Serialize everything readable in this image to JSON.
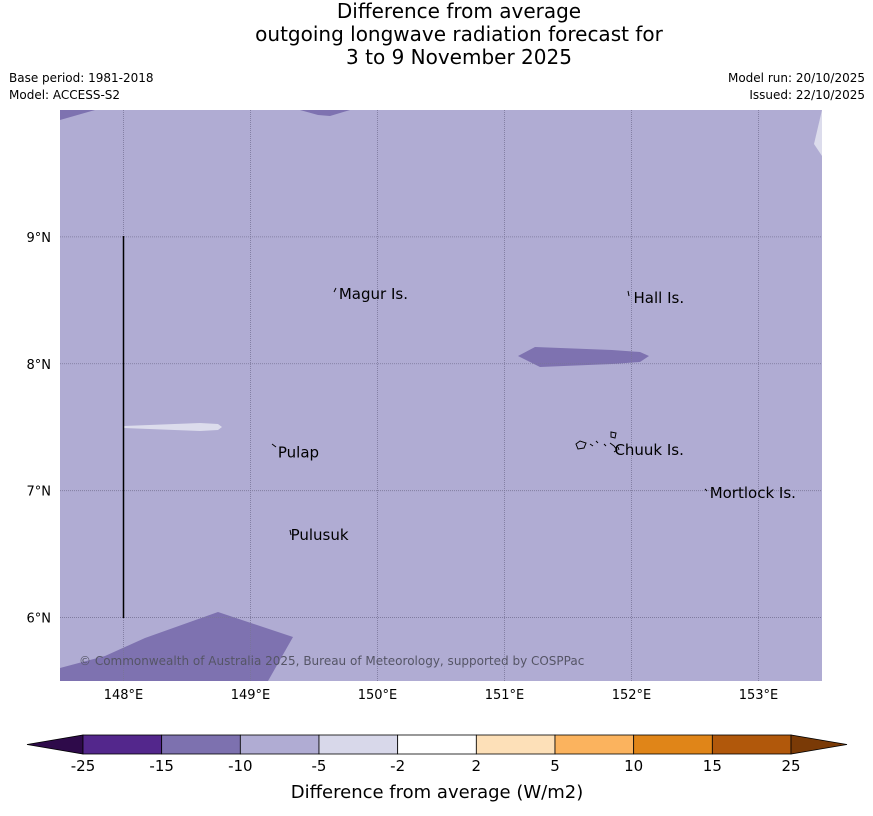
{
  "title": {
    "line1": "Difference from average",
    "line2": "outgoing longwave radiation forecast for",
    "line3": "3 to 9 November 2025"
  },
  "meta_left": {
    "base_period": "Base period: 1981-2018",
    "model": "Model: ACCESS-S2"
  },
  "meta_right": {
    "model_run": "Model run: 20/10/2025",
    "issued": "Issued: 22/10/2025"
  },
  "map": {
    "extent": {
      "lon_min": 147.5,
      "lon_max": 153.5,
      "lat_min": 5.5,
      "lat_max": 10.0
    },
    "lat_ticks": [
      {
        "value": 9,
        "label": "9°N"
      },
      {
        "value": 8,
        "label": "8°N"
      },
      {
        "value": 7,
        "label": "7°N"
      },
      {
        "value": 6,
        "label": "6°N"
      }
    ],
    "lon_ticks": [
      {
        "value": 148,
        "label": "148°E"
      },
      {
        "value": 149,
        "label": "149°E"
      },
      {
        "value": 150,
        "label": "150°E"
      },
      {
        "value": 151,
        "label": "151°E"
      },
      {
        "value": 152,
        "label": "152°E"
      },
      {
        "value": 153,
        "label": "153°E"
      }
    ],
    "places": [
      {
        "name": "Magur Is.",
        "lon": 149.68,
        "lat": 8.55
      },
      {
        "name": "Hall Is.",
        "lon": 152.0,
        "lat": 8.52
      },
      {
        "name": "Pulap",
        "lon": 149.2,
        "lat": 7.3
      },
      {
        "name": "Chuuk Is.",
        "lon": 151.85,
        "lat": 7.32
      },
      {
        "name": "Mortlock Is.",
        "lon": 152.6,
        "lat": 6.98
      },
      {
        "name": "Pulusuk",
        "lon": 149.3,
        "lat": 6.65
      }
    ],
    "credit": "© Commonwealth of Australia 2025, Bureau of Meteorology, supported by COSPPac",
    "colors": {
      "background": "#b0acd3",
      "dark_patch": "#7e72b0",
      "light_patch": "#dcdcec"
    }
  },
  "colorbar": {
    "title": "Difference from average (W/m2)",
    "labels": [
      "-25",
      "-15",
      "-10",
      "-5",
      "-2",
      "2",
      "5",
      "10",
      "15",
      "25"
    ],
    "bins": [
      {
        "color": "#53278c"
      },
      {
        "color": "#7d71af"
      },
      {
        "color": "#b0acd3"
      },
      {
        "color": "#d8d8ea"
      },
      {
        "color": "#ffffff"
      },
      {
        "color": "#fde0b8"
      },
      {
        "color": "#fbb35e"
      },
      {
        "color": "#e08518"
      },
      {
        "color": "#b1580b"
      }
    ],
    "extend_low_color": "#2e0a4a",
    "extend_high_color": "#7a3a06"
  }
}
